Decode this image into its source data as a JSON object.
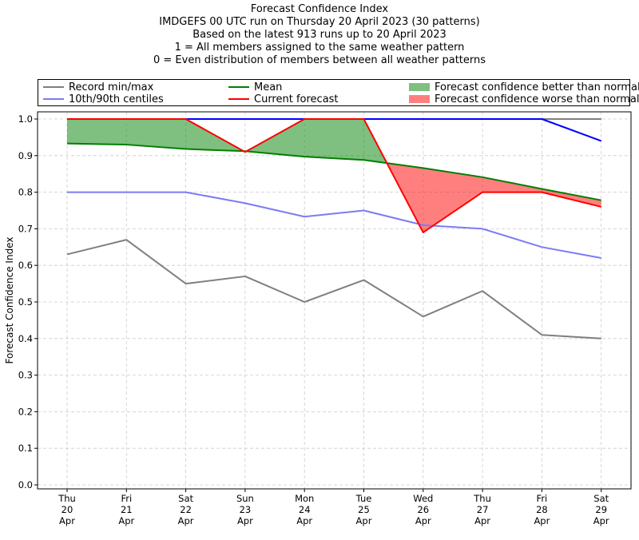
{
  "chart_data": {
    "type": "line",
    "title_lines": [
      "Forecast Confidence Index",
      "IMDGEFS 00 UTC run on Thursday 20 April 2023 (30 patterns)",
      "Based on the latest 913 runs up to 20 April 2023",
      "1 = All members assigned to the same weather pattern",
      "0 = Even distribution of members between all weather patterns"
    ],
    "ylabel": "Forecast Confidence Index",
    "ylim": [
      0.0,
      1.0
    ],
    "yticks": [
      "0.0",
      "0.1",
      "0.2",
      "0.3",
      "0.4",
      "0.5",
      "0.6",
      "0.7",
      "0.8",
      "0.9",
      "1.0"
    ],
    "grid": true,
    "legend_position": "top",
    "categories": [
      [
        "Thu",
        "20",
        "Apr"
      ],
      [
        "Fri",
        "21",
        "Apr"
      ],
      [
        "Sat",
        "22",
        "Apr"
      ],
      [
        "Sun",
        "23",
        "Apr"
      ],
      [
        "Mon",
        "24",
        "Apr"
      ],
      [
        "Tue",
        "25",
        "Apr"
      ],
      [
        "Wed",
        "26",
        "Apr"
      ],
      [
        "Thu",
        "27",
        "Apr"
      ],
      [
        "Fri",
        "28",
        "Apr"
      ],
      [
        "Sat",
        "29",
        "Apr"
      ]
    ],
    "series": [
      {
        "name": "Record min/max",
        "color": "#7f7f7f",
        "role": "min",
        "values": [
          0.63,
          0.67,
          0.55,
          0.57,
          0.5,
          0.56,
          0.46,
          0.53,
          0.41,
          0.4
        ]
      },
      {
        "name": "Record min/max",
        "color": "#7f7f7f",
        "role": "max",
        "values": [
          1.0,
          1.0,
          1.0,
          1.0,
          1.0,
          1.0,
          1.0,
          1.0,
          1.0,
          1.0
        ]
      },
      {
        "name": "10th/90th centiles",
        "color": "#7b7bf5",
        "role": "p10",
        "values": [
          0.8,
          0.8,
          0.8,
          0.77,
          0.733,
          0.75,
          0.71,
          0.7,
          0.65,
          0.62
        ]
      },
      {
        "name": "10th/90th centiles",
        "color": "#7b7bf5",
        "role": "p90",
        "values": [
          1.0,
          1.0,
          1.0,
          1.0,
          1.0,
          1.0,
          1.0,
          1.0,
          1.0,
          0.94
        ]
      },
      {
        "name": "Mean",
        "color": "#008000",
        "role": "mean",
        "values": [
          0.933,
          0.93,
          0.918,
          0.912,
          0.897,
          0.888,
          0.866,
          0.841,
          0.809,
          0.778
        ]
      },
      {
        "name": "Current forecast",
        "color": "#ff0000",
        "role": "current",
        "values": [
          1.0,
          1.0,
          1.0,
          0.91,
          1.0,
          1.0,
          0.69,
          0.8,
          0.8,
          0.76
        ]
      }
    ],
    "fills": [
      {
        "name": "Forecast confidence better than normal",
        "color": "#008000",
        "opacity": 0.5
      },
      {
        "name": "Forecast confidence worse than normal",
        "color": "#ff0000",
        "opacity": 0.5
      }
    ]
  }
}
